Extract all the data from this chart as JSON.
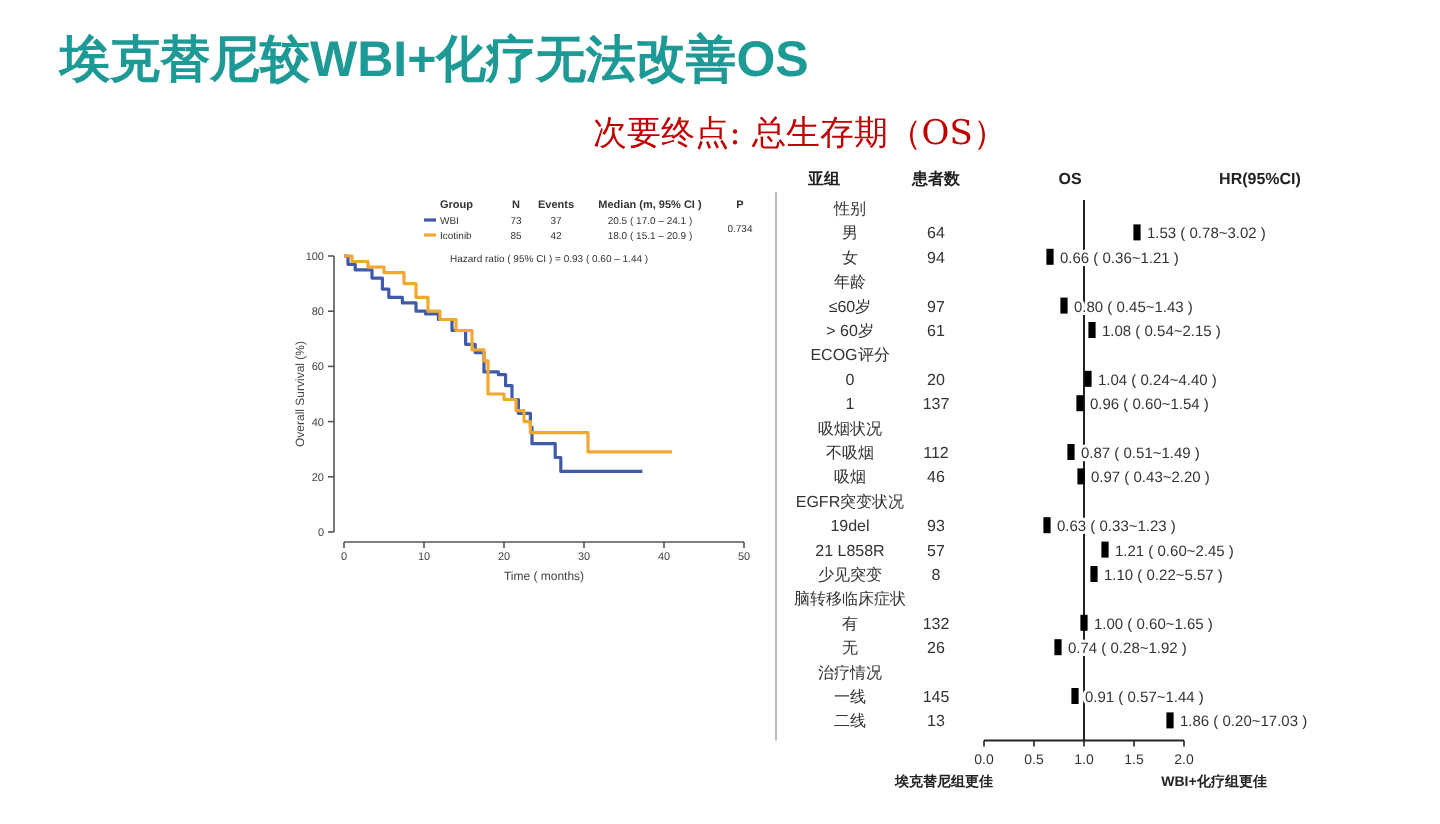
{
  "chart_data": [
    {
      "type": "step",
      "title": "埃克替尼较WBI+化疗无法改善OS",
      "subtitle": "次要终点: 总生存期（OS）",
      "xlabel": "Time ( months)",
      "ylabel": "Overall Survival (%)",
      "xlim": [
        0,
        50
      ],
      "ylim": [
        0,
        100
      ],
      "xticks": [
        0,
        10,
        20,
        30,
        40,
        50
      ],
      "yticks": [
        0,
        20,
        40,
        60,
        80,
        100
      ],
      "legend": "top",
      "grid": false,
      "series": [
        {
          "name": "WBI",
          "color": "#3f5aa8",
          "x": [
            0,
            0.5,
            1.4,
            3.5,
            4.8,
            5.6,
            7.3,
            9,
            10.2,
            11.8,
            13.5,
            15.2,
            16.4,
            17.5,
            19.3,
            20.2,
            21,
            21.8,
            23.3,
            23.5,
            26.4,
            27.1,
            37.3
          ],
          "values": [
            100,
            97,
            95,
            92,
            88,
            85,
            83,
            80,
            79,
            77,
            73,
            68,
            65,
            58,
            57,
            53,
            48,
            43,
            38,
            32,
            27,
            22,
            22
          ]
        },
        {
          "name": "Icotinib",
          "color": "#f0a830",
          "x": [
            0,
            1,
            3,
            5,
            7.5,
            9,
            10.5,
            12,
            14,
            16,
            17.5,
            18,
            20,
            21.5,
            22.5,
            23.3,
            30.5,
            41
          ],
          "values": [
            100,
            98,
            96,
            94,
            90,
            85,
            80,
            77,
            73,
            66,
            62,
            50,
            48,
            44,
            40,
            36,
            29,
            29
          ]
        }
      ],
      "annotations": [
        "Group",
        "N",
        "Events",
        "Median (m, 95% CI )",
        "P",
        "73",
        "37",
        "20.5 ( 17.0 – 24.1 )",
        "85",
        "42",
        "18.0 ( 15.1 – 20.9 )",
        "0.734",
        "Hazard ratio ( 95% CI ) = 0.93 ( 0.60 – 1.44 )"
      ]
    },
    {
      "type": "scatter",
      "orientation": "horizontal",
      "marker": "square",
      "color": "#000000",
      "xlim": [
        0,
        2
      ],
      "xticks": [
        {
          "value": 0,
          "label": "0.0"
        },
        {
          "value": 0.5,
          "label": "0.5"
        },
        {
          "value": 1,
          "label": "1.0"
        },
        {
          "value": 1.5,
          "label": "1.5"
        },
        {
          "value": 2,
          "label": "2.0"
        }
      ],
      "grid": false,
      "categories": [
        "性别",
        "男",
        "女",
        "年龄",
        "≤60岁",
        "> 60岁",
        "ECOG评分",
        "0",
        "1",
        "吸烟状况",
        "不吸烟",
        "吸烟",
        "EGFR突变状况",
        "19del",
        "21 L858R",
        "少见突变",
        "脑转移临床症状",
        "有",
        "无",
        "治疗情况",
        "一线",
        "二线"
      ],
      "values": [
        null,
        1.53,
        0.66,
        null,
        0.8,
        1.08,
        null,
        1.04,
        0.96,
        null,
        0.87,
        0.97,
        null,
        0.63,
        1.21,
        1.1,
        null,
        1.0,
        0.74,
        null,
        0.91,
        1.86
      ],
      "value_labels": [
        null,
        "1.53 ( 0.78~3.02 )",
        "0.66 ( 0.36~1.21 )",
        null,
        "0.80 ( 0.45~1.43 )",
        "1.08 ( 0.54~2.15 )",
        null,
        "1.04 ( 0.24~4.40 )",
        "0.96 ( 0.60~1.54 )",
        null,
        "0.87 ( 0.51~1.49 )",
        "0.97 ( 0.43~2.20 )",
        null,
        "0.63 ( 0.33~1.23 )",
        "1.21 ( 0.60~2.45 )",
        "1.10 ( 0.22~5.57 )",
        null,
        "1.00 ( 0.60~1.65 )",
        "0.74 ( 0.28~1.92 )",
        null,
        "0.91 ( 0.57~1.44 )",
        "1.86 ( 0.20~17.03 )"
      ],
      "ref_lines": [
        {
          "axis": "x",
          "value": 1
        }
      ],
      "annotations": [
        "亚组",
        "患者数",
        "OS",
        "HR(95%CI)",
        "埃克替尼组更佳",
        "WBI+化疗组更佳",
        "64",
        "94",
        "97",
        "61",
        "20",
        "137",
        "112",
        "46",
        "93",
        "57",
        "8",
        "132",
        "26",
        "145",
        "13"
      ]
    }
  ]
}
